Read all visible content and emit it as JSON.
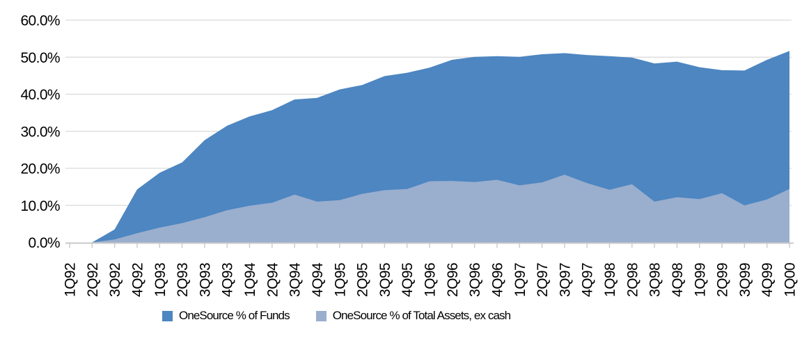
{
  "chart_data": {
    "type": "area",
    "mode": "overlapping",
    "categories": [
      "1Q92",
      "2Q92",
      "3Q92",
      "4Q92",
      "1Q93",
      "2Q93",
      "3Q93",
      "4Q93",
      "1Q94",
      "2Q94",
      "3Q94",
      "4Q94",
      "1Q95",
      "2Q95",
      "3Q95",
      "4Q95",
      "1Q96",
      "2Q96",
      "3Q96",
      "4Q96",
      "1Q97",
      "2Q97",
      "3Q97",
      "4Q97",
      "1Q98",
      "2Q98",
      "3Q98",
      "4Q98",
      "1Q99",
      "2Q99",
      "3Q99",
      "4Q99",
      "1Q00"
    ],
    "series": [
      {
        "name": "OneSource % of Funds",
        "color": "#4D86C1",
        "values": [
          0.0,
          0.0,
          3.5,
          14.3,
          18.8,
          21.6,
          27.6,
          31.5,
          34.0,
          35.7,
          38.6,
          39.0,
          41.3,
          42.5,
          44.9,
          45.8,
          47.2,
          49.3,
          50.1,
          50.3,
          50.1,
          50.8,
          51.1,
          50.6,
          50.3,
          49.9,
          48.3,
          48.8,
          47.3,
          46.5,
          46.4,
          49.3,
          51.7
        ]
      },
      {
        "name": "OneSource % of Total Assets, ex cash",
        "color": "#9AAECE",
        "values": [
          0.0,
          0.0,
          0.8,
          2.5,
          4.0,
          5.2,
          6.8,
          8.7,
          9.9,
          10.7,
          12.9,
          11.0,
          11.4,
          13.1,
          14.1,
          14.4,
          16.5,
          16.6,
          16.3,
          16.9,
          15.4,
          16.2,
          18.3,
          16.0,
          14.2,
          15.7,
          11.0,
          12.2,
          11.7,
          13.3,
          10.0,
          11.6,
          14.4
        ]
      }
    ],
    "title": "",
    "xlabel": "",
    "ylabel": "",
    "ylim": [
      0,
      60
    ],
    "y_tick_step": 10,
    "y_tick_labels": [
      "0.0%",
      "10.0%",
      "20.0%",
      "30.0%",
      "40.0%",
      "50.0%",
      "60.0%"
    ],
    "grid": true,
    "legend_position": "bottom"
  },
  "colors": {
    "gridline": "#D9D9D9",
    "axis": "#C9C9C9",
    "tick": "#C9C9C9",
    "text": "#000000",
    "background": "#FFFFFF"
  }
}
